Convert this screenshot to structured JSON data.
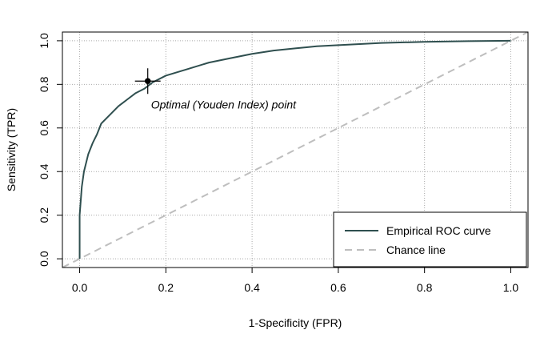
{
  "chart_data": {
    "type": "line",
    "xlabel": "1-Specificity (FPR)",
    "ylabel": "Sensitivity (TPR)",
    "xlim": [
      -0.04,
      1.04
    ],
    "ylim": [
      -0.04,
      1.04
    ],
    "x_ticks": [
      0.0,
      0.2,
      0.4,
      0.6,
      0.8,
      1.0
    ],
    "y_ticks": [
      0.0,
      0.2,
      0.4,
      0.6,
      0.8,
      1.0
    ],
    "x_tick_labels": [
      "0.0",
      "0.2",
      "0.4",
      "0.6",
      "0.8",
      "1.0"
    ],
    "y_tick_labels": [
      "0.0",
      "0.2",
      "0.4",
      "0.6",
      "0.8",
      "1.0"
    ],
    "grid": true,
    "legend_position": "bottom-right",
    "series": [
      {
        "name": "Empirical ROC curve",
        "color": "#2f4f4f",
        "style": "solid",
        "x": [
          0.0,
          0.0,
          0.005,
          0.01,
          0.015,
          0.02,
          0.03,
          0.04,
          0.05,
          0.07,
          0.09,
          0.11,
          0.13,
          0.15,
          0.17,
          0.2,
          0.25,
          0.3,
          0.35,
          0.4,
          0.45,
          0.5,
          0.55,
          0.6,
          0.65,
          0.7,
          0.8,
          0.9,
          1.0
        ],
        "y": [
          0.0,
          0.2,
          0.33,
          0.4,
          0.44,
          0.48,
          0.53,
          0.57,
          0.62,
          0.66,
          0.7,
          0.73,
          0.76,
          0.78,
          0.81,
          0.84,
          0.87,
          0.9,
          0.92,
          0.94,
          0.955,
          0.965,
          0.975,
          0.98,
          0.985,
          0.99,
          0.995,
          0.998,
          1.0
        ]
      },
      {
        "name": "Chance line",
        "color": "#bebebe",
        "style": "dashed",
        "x": [
          -0.04,
          1.04
        ],
        "y": [
          -0.04,
          1.04
        ]
      }
    ],
    "optimal_point": {
      "x": 0.158,
      "y": 0.815
    },
    "annotation": "Optimal (Youden Index) point"
  }
}
